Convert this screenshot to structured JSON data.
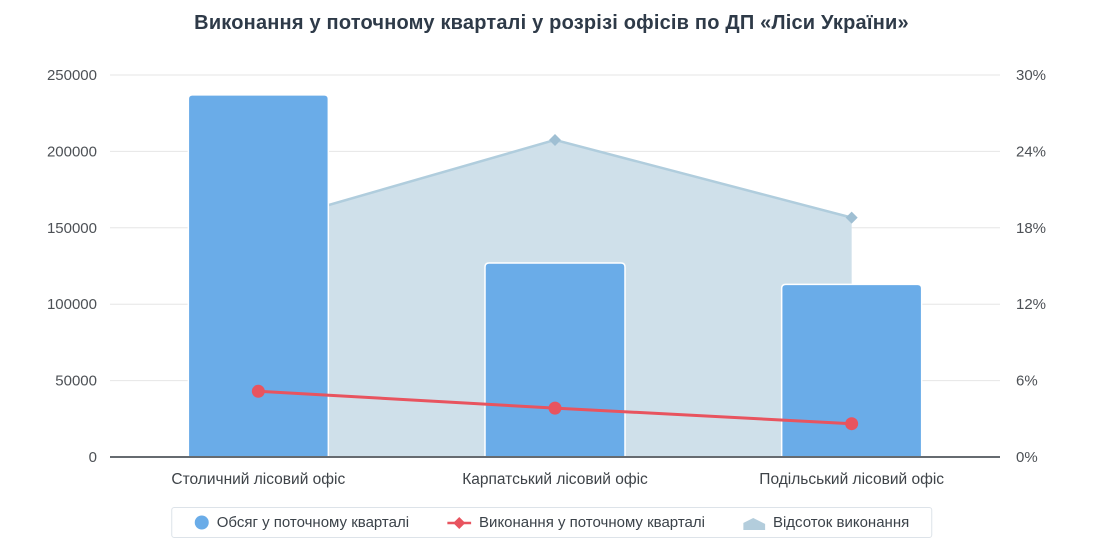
{
  "title": "Виконання у поточному кварталі у розрізі офісів по ДП «Ліси України»",
  "chart_data": {
    "type": "combo",
    "categories": [
      "Столичний лісовий офіс",
      "Карпатський лісовий офіс",
      "Подільський лісовий офіс"
    ],
    "series": [
      {
        "name": "Обсяг у поточному кварталі",
        "type": "bar",
        "axis": "left",
        "values": [
          237000,
          127000,
          113000
        ]
      },
      {
        "name": "Виконання у поточному кварталі",
        "type": "line",
        "axis": "left",
        "values": [
          43000,
          32000,
          21800
        ]
      },
      {
        "name": "Відсоток виконання",
        "type": "area",
        "axis": "right",
        "values": [
          18.2,
          24.9,
          18.8
        ]
      }
    ],
    "left_axis": {
      "label": "",
      "min": 0,
      "max": 250000,
      "tick_step": 50000,
      "ticks": [
        "0",
        "50000",
        "100000",
        "150000",
        "200000",
        "250000"
      ]
    },
    "right_axis": {
      "label": "",
      "min": 0,
      "max": 30,
      "tick_step": 6,
      "ticks": [
        "0%",
        "6%",
        "12%",
        "18%",
        "24%",
        "30%"
      ]
    },
    "grid": true,
    "legend_position": "bottom"
  },
  "legend": {
    "items": [
      {
        "label": "Обсяг у поточному кварталі",
        "marker": "circle"
      },
      {
        "label": "Виконання у поточному кварталі",
        "marker": "line-diamond"
      },
      {
        "label": "Відсоток виконання",
        "marker": "area"
      }
    ]
  },
  "colors": {
    "bar": "#6aace8",
    "bar_border": "#ffffff",
    "line": "#e8545f",
    "area_fill": "#cfe0ea",
    "area_stroke": "#b0cddd",
    "area_marker": "#9fbfd3",
    "grid": "#e6e6e6",
    "axis_line": "#666b70",
    "tick_text": "#4d5156",
    "category_text": "#3e4348",
    "title_text": "#2e3a48",
    "legend_text": "#3b4249",
    "legend_border": "#dde3e9"
  }
}
